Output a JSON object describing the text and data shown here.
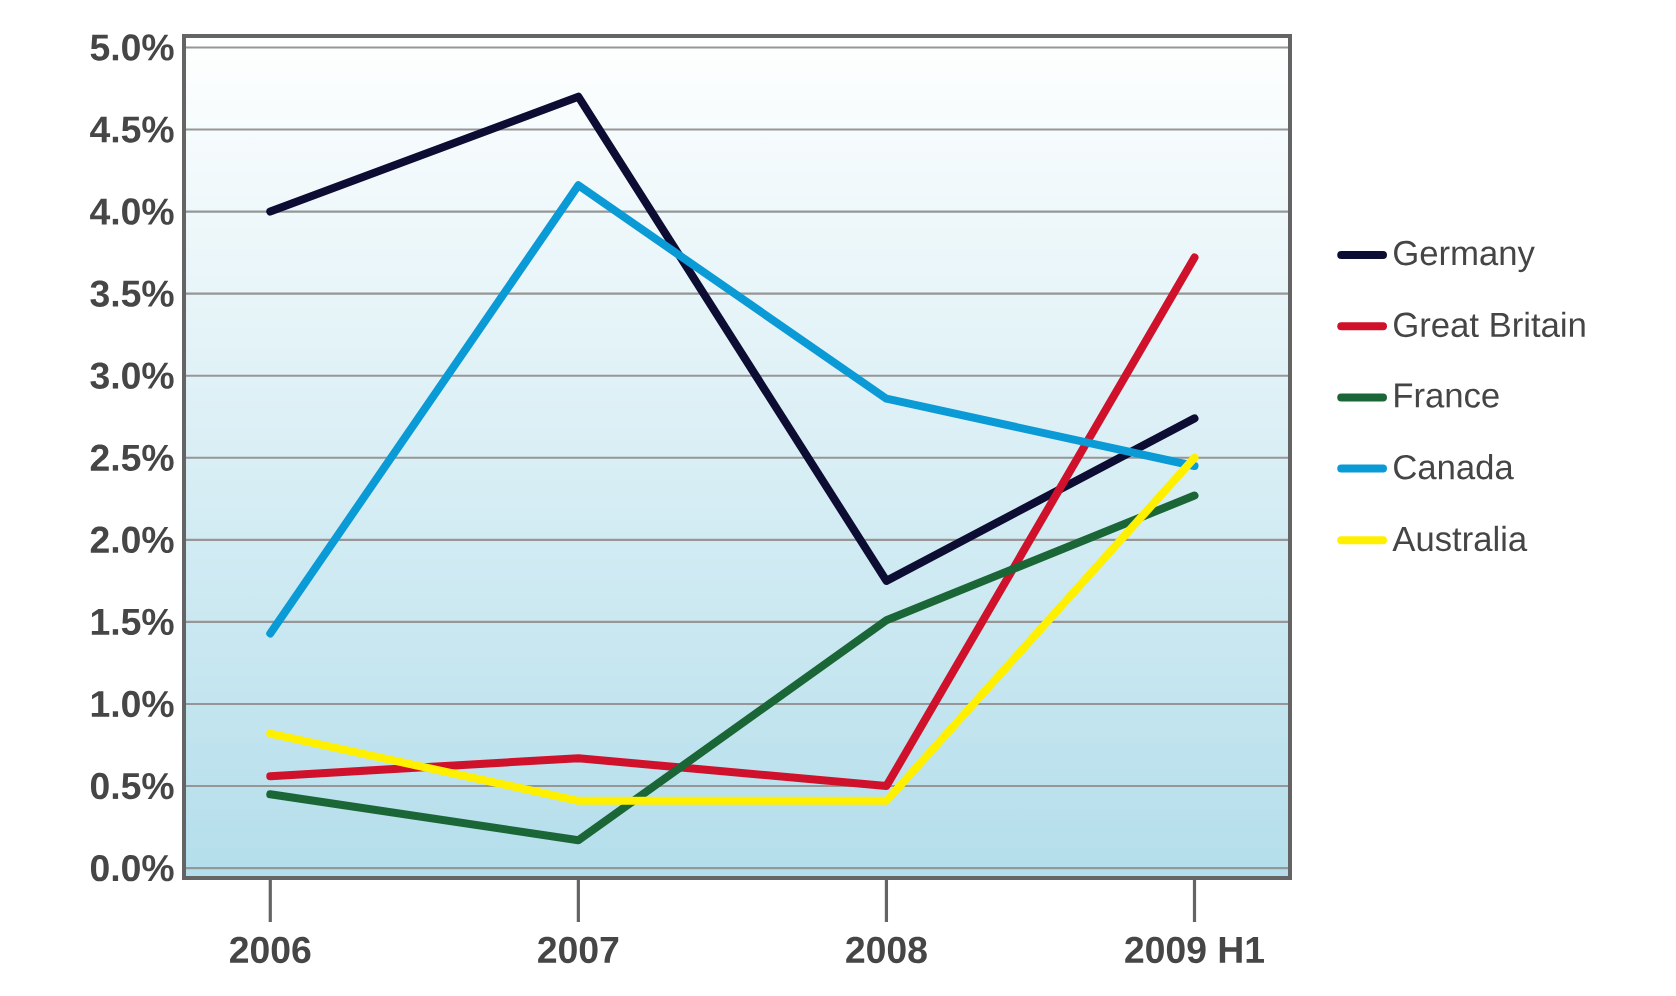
{
  "chart_data": {
    "type": "line",
    "categories": [
      "2006",
      "2007",
      "2008",
      "2009 H1"
    ],
    "series": [
      {
        "name": "Germany",
        "color": "#0d0d33",
        "values": [
          4.0,
          4.7,
          1.75,
          2.74
        ]
      },
      {
        "name": "Great Britain",
        "color": "#d0112b",
        "values": [
          0.56,
          0.67,
          0.5,
          3.72
        ]
      },
      {
        "name": "France",
        "color": "#1a6636",
        "values": [
          0.45,
          0.17,
          1.51,
          2.27
        ]
      },
      {
        "name": "Canada",
        "color": "#0a9ad6",
        "values": [
          1.43,
          4.16,
          2.86,
          2.45
        ]
      },
      {
        "name": "Australia",
        "color": "#fff000",
        "values": [
          0.82,
          0.41,
          0.41,
          2.5
        ]
      }
    ],
    "ylim": [
      -0.06,
      5.07
    ],
    "yticks": [
      {
        "value": 0,
        "label": "0.0%"
      },
      {
        "value": 0.5,
        "label": "0.5%"
      },
      {
        "value": 1,
        "label": "1.0%"
      },
      {
        "value": 1.5,
        "label": "1.5%"
      },
      {
        "value": 2,
        "label": "2.0%"
      },
      {
        "value": 2.5,
        "label": "2.5%"
      },
      {
        "value": 3,
        "label": "3.0%"
      },
      {
        "value": 3.5,
        "label": "3.5%"
      },
      {
        "value": 4,
        "label": "4.0%"
      },
      {
        "value": 4.5,
        "label": "4.5%"
      },
      {
        "value": 5,
        "label": "5.0%"
      }
    ],
    "grid": "y",
    "legend": "right",
    "marker": "none",
    "line_style": "solid"
  }
}
